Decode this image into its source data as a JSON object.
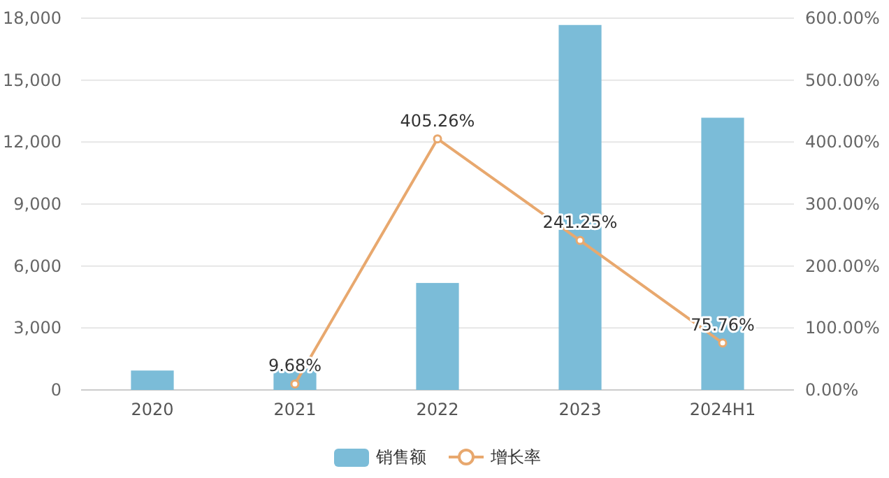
{
  "chart_data": {
    "type": "bar",
    "categories": [
      "2020",
      "2021",
      "2022",
      "2023",
      "2024H1"
    ],
    "series": [
      {
        "name": "销售额",
        "color": "#7bbcd8",
        "values": [
          940,
          1030,
          5180,
          17670,
          13180
        ]
      },
      {
        "name": "增长率",
        "type": "line",
        "axis": "y2",
        "color": "#e8a86e",
        "marker": "circle",
        "values": [
          null,
          9.68,
          405.26,
          241.25,
          75.76
        ],
        "value_labels": [
          null,
          "9.68%",
          "405.26%",
          "241.25%",
          "75.76%"
        ]
      }
    ],
    "ylim": [
      0,
      18000
    ],
    "yticks": [
      0,
      {
        "value": 3000,
        "label": "3,000"
      },
      {
        "value": 6000,
        "label": "6,000"
      },
      {
        "value": 9000,
        "label": "9,000"
      },
      {
        "value": 12000,
        "label": "12,000"
      },
      {
        "value": 15000,
        "label": "15,000"
      },
      {
        "value": 18000,
        "label": "18,000"
      }
    ],
    "y2lim": [
      0,
      600
    ],
    "y2ticks": [
      {
        "value": 0,
        "label": "0.00%"
      },
      {
        "value": 100,
        "label": "100.00%"
      },
      {
        "value": 200,
        "label": "200.00%"
      },
      {
        "value": 300,
        "label": "300.00%"
      },
      {
        "value": 400,
        "label": "400.00%"
      },
      {
        "value": 500,
        "label": "500.00%"
      },
      {
        "value": 600,
        "label": "600.00%"
      }
    ],
    "grid": "y",
    "legend": "bottom"
  }
}
